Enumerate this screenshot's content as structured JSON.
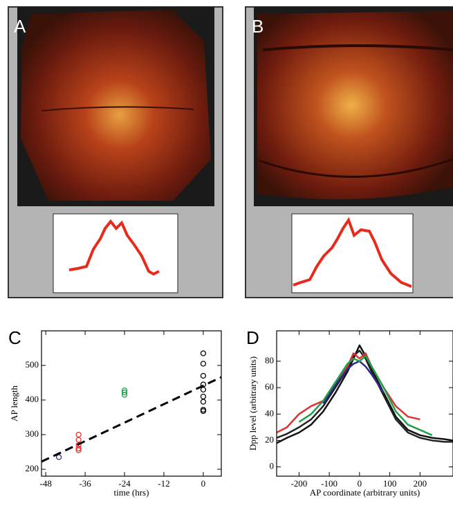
{
  "panel_labels": [
    "A",
    "B",
    "C",
    "D"
  ],
  "chart_data": [
    {
      "type": "scatter",
      "xlabel": "time (hrs)",
      "ylabel": "AP length",
      "xlim": [
        -49.3,
        5.5
      ],
      "ylim": [
        180,
        600
      ],
      "xticks": [
        -48,
        -36,
        -24,
        -12,
        0
      ],
      "yticks": [
        200,
        300,
        400,
        500
      ],
      "series": [
        {
          "color": "#2b2b8c",
          "x": [
            -44
          ],
          "values": [
            235
          ]
        },
        {
          "color": "#e03232",
          "x": [
            -38,
            -38,
            -38,
            -38,
            -38
          ],
          "values": [
            300,
            285,
            270,
            260,
            255
          ]
        },
        {
          "color": "#1fa04a",
          "x": [
            -24,
            -24,
            -24
          ],
          "values": [
            428,
            422,
            415
          ]
        },
        {
          "color": "#000000",
          "x": [
            0,
            0,
            0,
            0,
            0,
            0,
            0,
            0,
            0
          ],
          "values": [
            535,
            505,
            470,
            445,
            430,
            410,
            395,
            372,
            368
          ]
        },
        {
          "type": "line",
          "dashed": true,
          "color": "#000000",
          "x": [
            -49.3,
            5.5
          ],
          "values": [
            222,
            466
          ]
        }
      ]
    },
    {
      "type": "line",
      "xlabel": "AP coordinate (arbitrary units)",
      "ylabel": "Dpp level (arbitrary units)",
      "xlim": [
        -274,
        309
      ],
      "ylim": [
        -7,
        103
      ],
      "xticks": [
        -200,
        -100,
        0,
        100,
        200
      ],
      "yticks": [
        0,
        20,
        40,
        60,
        80
      ],
      "x": [
        -274,
        -240,
        -200,
        -160,
        -120,
        -80,
        -40,
        -20,
        0,
        20,
        40,
        80,
        120,
        160,
        200,
        240,
        280,
        309
      ],
      "series": [
        {
          "color": "#111111",
          "values": [
            18,
            22,
            26,
            32,
            42,
            56,
            72,
            82,
            92,
            84,
            74,
            56,
            38,
            28,
            24,
            22,
            21,
            20
          ]
        },
        {
          "color": "#222222",
          "values": [
            22,
            25,
            30,
            36,
            46,
            60,
            74,
            84,
            88,
            82,
            72,
            54,
            36,
            26,
            22,
            20,
            19,
            19
          ]
        },
        {
          "color": "#e03232",
          "values": [
            26,
            30,
            40,
            46,
            50,
            64,
            76,
            86,
            82,
            86,
            76,
            60,
            46,
            38,
            36,
            null,
            null,
            null
          ]
        },
        {
          "color": "#2b2b8c",
          "values": [
            null,
            null,
            null,
            null,
            48,
            62,
            74,
            78,
            80,
            76,
            70,
            56,
            null,
            null,
            null,
            null,
            null,
            null
          ]
        },
        {
          "color": "#1fa04a",
          "values": [
            null,
            null,
            34,
            40,
            50,
            64,
            78,
            82,
            80,
            84,
            76,
            60,
            42,
            32,
            28,
            24,
            null,
            null
          ]
        }
      ]
    }
  ]
}
